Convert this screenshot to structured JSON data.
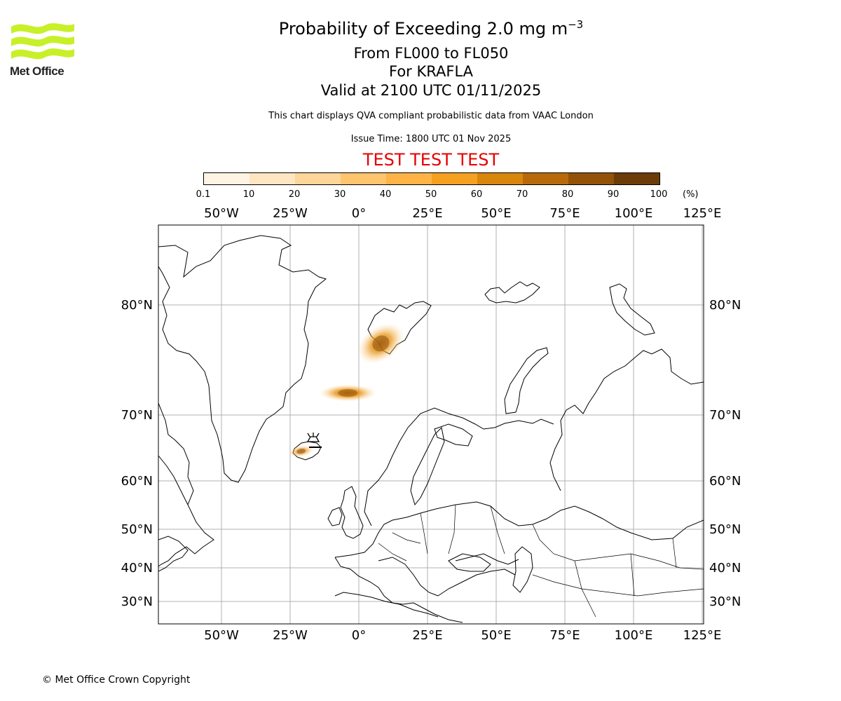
{
  "brand": {
    "name": "Met Office",
    "accent": "#c8f028"
  },
  "title": {
    "main_prefix": "Probability of Exceeding 2.0 mg m",
    "main_superscript": "−3",
    "levels": "From FL000 to FL050",
    "volcano": "For KRAFLA",
    "valid": "Valid at 2100 UTC 01/11/2025"
  },
  "subtitle": "This chart displays QVA compliant probabilistic data from VAAC London",
  "issue_time": "Issue Time: 1800 UTC 01 Nov 2025",
  "test_banner": "TEST TEST TEST",
  "colorbar": {
    "ticks": [
      "0.1",
      "10",
      "20",
      "30",
      "40",
      "50",
      "60",
      "70",
      "80",
      "90",
      "100"
    ],
    "unit": "(%)",
    "colors": [
      "#fff4e4",
      "#ffe6c2",
      "#ffd699",
      "#ffc46e",
      "#ffb347",
      "#f5a020",
      "#d9860c",
      "#b86a0a",
      "#935208",
      "#6b3c08"
    ]
  },
  "map": {
    "lon_labels": [
      "50°W",
      "25°W",
      "0°",
      "25°E",
      "50°E",
      "75°E",
      "100°E",
      "125°E"
    ],
    "lon_values": [
      -50,
      -25,
      0,
      25,
      50,
      75,
      100,
      125
    ],
    "lat_labels": [
      "80°N",
      "70°N",
      "60°N",
      "50°N",
      "40°N",
      "30°N"
    ],
    "lat_values": [
      80,
      70,
      60,
      50,
      40,
      30
    ],
    "plumes": [
      {
        "name": "plume-svalbard-south",
        "lon": 8,
        "lat": 76.5,
        "probability": 70
      },
      {
        "name": "plume-norwegian-sea",
        "lon": -4,
        "lat": 72,
        "probability": 75
      },
      {
        "name": "plume-iceland",
        "lon": -21,
        "lat": 64.5,
        "probability": 55
      }
    ],
    "volcano_location": {
      "name": "KRAFLA",
      "lon": -16.8,
      "lat": 65.7
    }
  },
  "copyright": "© Met Office Crown Copyright"
}
